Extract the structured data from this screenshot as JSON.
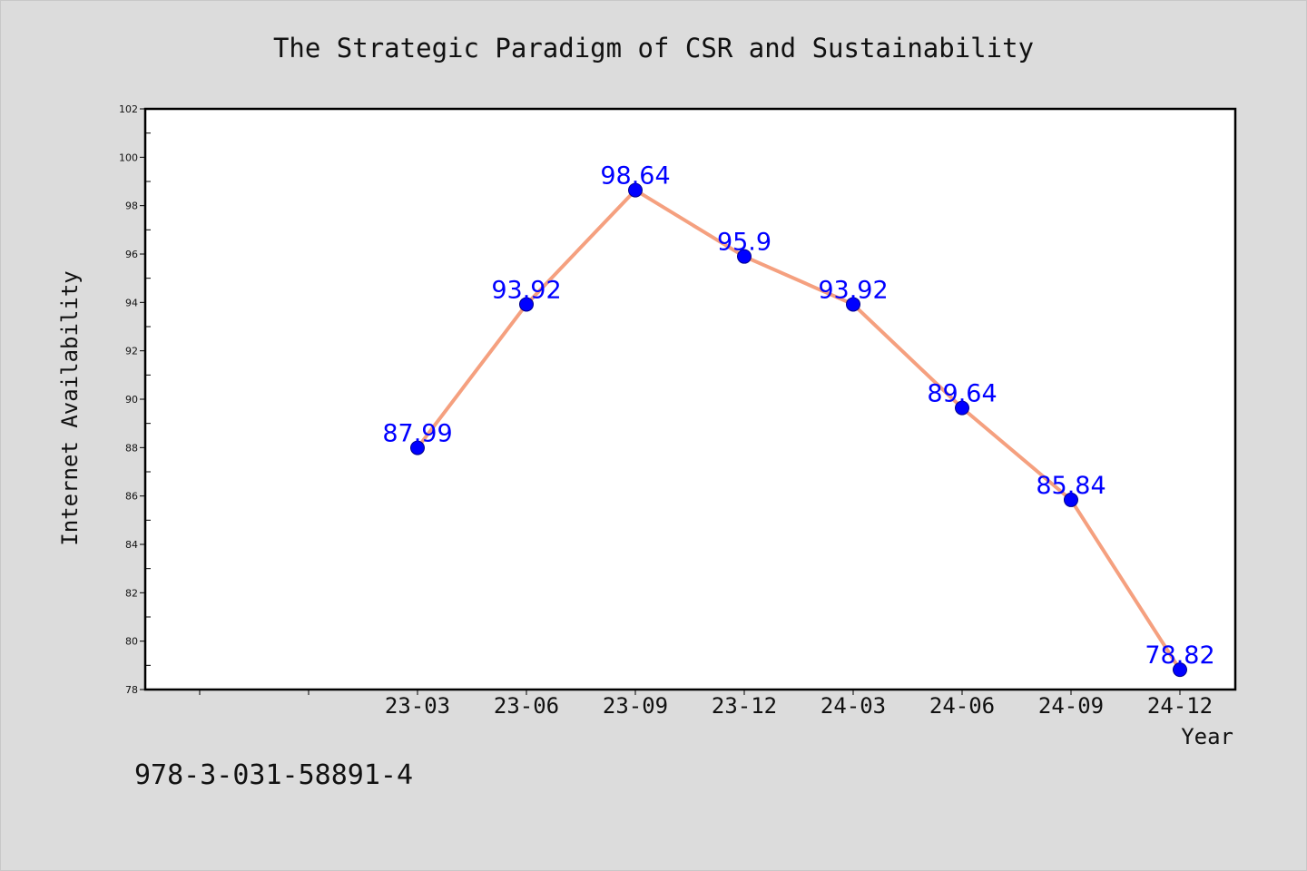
{
  "chart_data": {
    "type": "line",
    "title": "The Strategic Paradigm of CSR and Sustainability",
    "xlabel": "Year",
    "ylabel": "Internet Availability",
    "categories": [
      "23-03",
      "23-06",
      "23-09",
      "23-12",
      "24-03",
      "24-06",
      "24-09",
      "24-12"
    ],
    "values": [
      87.99,
      93.92,
      98.64,
      95.9,
      93.92,
      89.64,
      85.84,
      78.82
    ],
    "data_labels": [
      "87.99",
      "93.92",
      "98.64",
      "95.9",
      "93.92",
      "89.64",
      "85.84",
      "78.82"
    ],
    "ylim": [
      78,
      102
    ],
    "yticks": [
      78,
      80,
      82,
      84,
      86,
      88,
      90,
      92,
      94,
      96,
      98,
      100,
      102
    ],
    "ytick_labels": [
      "78",
      "80",
      "82",
      "84",
      "86",
      "88",
      "90",
      "92",
      "94",
      "96",
      "98",
      "100",
      "102"
    ],
    "grid": false,
    "legend": "none",
    "colors": {
      "line": "#f5a07f",
      "marker": "#0000ff",
      "marker_edge": "#00008b",
      "label": "#0000ff",
      "background": "#dcdcdc",
      "plot_background": "#ffffff"
    }
  },
  "footer": {
    "isbn": "978-3-031-58891-4"
  }
}
